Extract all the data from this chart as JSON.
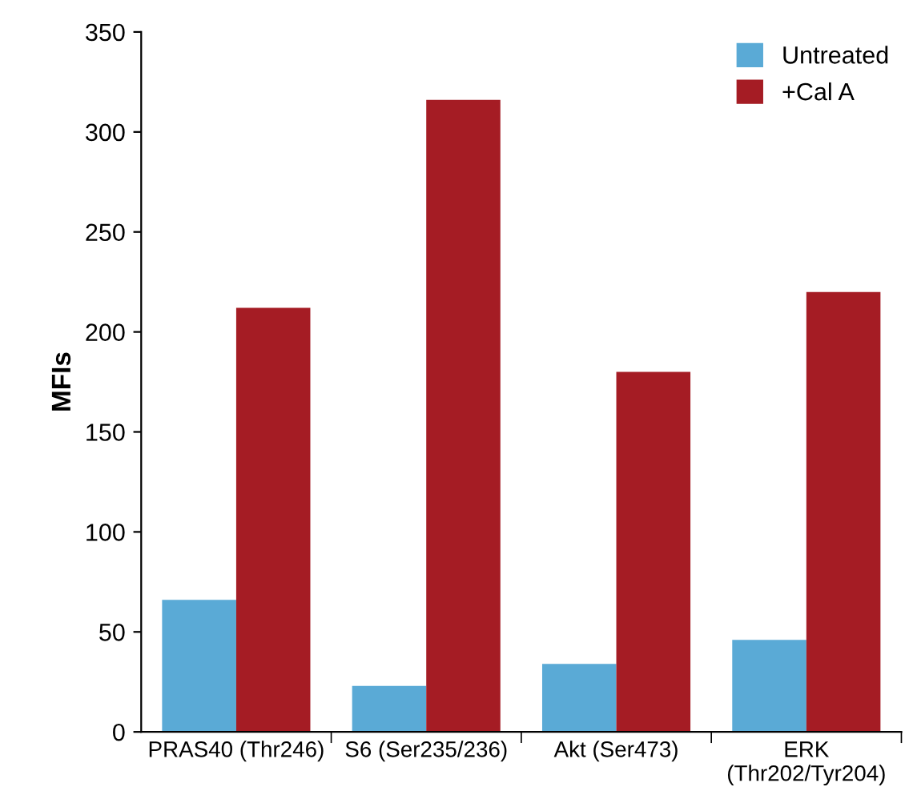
{
  "chart_data": {
    "type": "bar",
    "ylabel": "MFIs",
    "categories": [
      "PRAS40 (Thr246)",
      "S6 (Ser235/236)",
      "Akt (Ser473)",
      "ERK\n(Thr202/Tyr204)"
    ],
    "series": [
      {
        "name": "Untreated",
        "color": "#5aaad6",
        "values": [
          66,
          23,
          34,
          46
        ]
      },
      {
        "name": "+Cal A",
        "color": "#a51c24",
        "values": [
          212,
          316,
          180,
          220
        ]
      }
    ],
    "ylim": [
      0,
      350
    ],
    "yticks": [
      0,
      50,
      100,
      150,
      200,
      250,
      300,
      350
    ],
    "grid": false,
    "legend": "top right"
  }
}
